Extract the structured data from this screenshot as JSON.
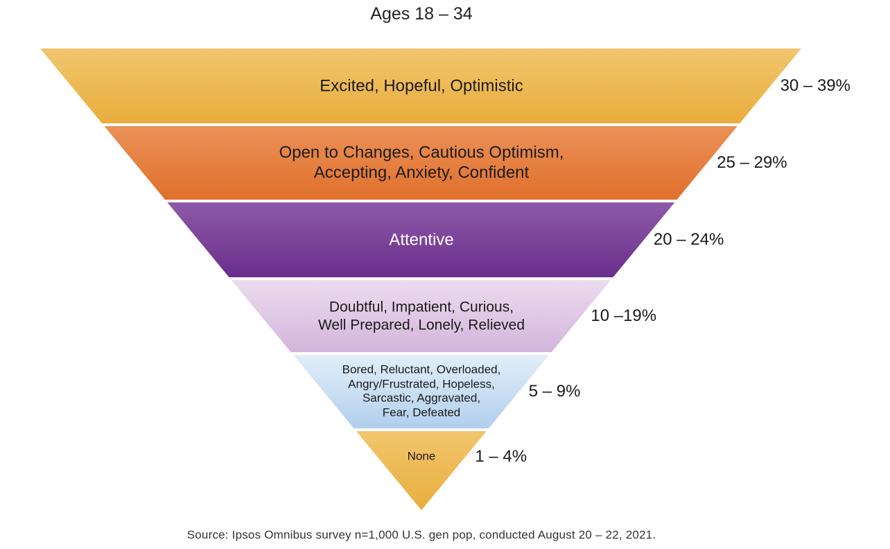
{
  "title": "Ages 18 – 34",
  "source": "Source: Ipsos Omnibus survey n=1,000 U.S. gen pop, conducted August 20 – 22, 2021.",
  "tiers": [
    {
      "label": "Excited, Hopeful, Optimistic",
      "range": "30 – 39%",
      "color_top": "#f2c66e",
      "color_bottom": "#e9ad3c",
      "text_color": "#1a1a1a"
    },
    {
      "label": "Open to Changes, Cautious Optimism,\nAccepting, Anxiety, Confident",
      "range": "25 – 29%",
      "color_top": "#eb9157",
      "color_bottom": "#e0702c",
      "text_color": "#1a1a1a"
    },
    {
      "label": "Attentive",
      "range": "20 – 24%",
      "color_top": "#8e5aa8",
      "color_bottom": "#6a2e8c",
      "text_color": "#ffffff"
    },
    {
      "label": "Doubtful, Impatient, Curious,\nWell Prepared, Lonely, Relieved",
      "range": "10 –19%",
      "color_top": "#ecdcef",
      "color_bottom": "#d3b5db",
      "text_color": "#1a1a1a"
    },
    {
      "label": "Bored, Reluctant, Overloaded,\nAngry/Frustrated, Hopeless,\nSarcastic, Aggravated,\nFear, Defeated",
      "range": "5 – 9%",
      "color_top": "#e2eef9",
      "color_bottom": "#b2cfec",
      "text_color": "#1a1a1a"
    },
    {
      "label": "None",
      "range": "1 – 4%",
      "color_top": "#f2c66e",
      "color_bottom": "#e9ad3c",
      "text_color": "#1a1a1a"
    }
  ]
}
